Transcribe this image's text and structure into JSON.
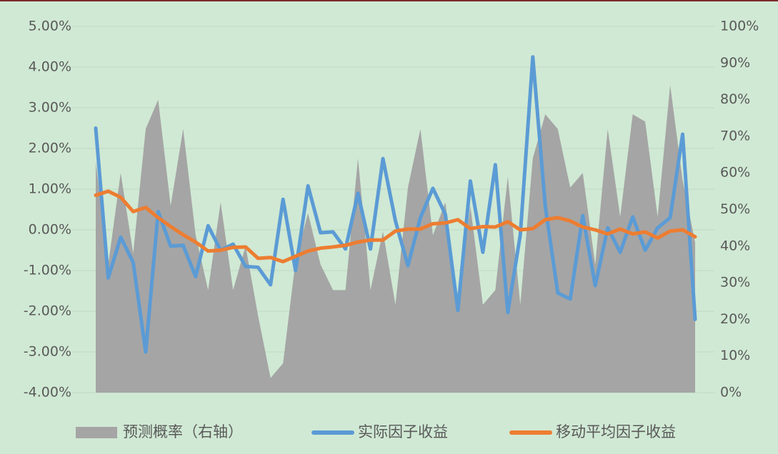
{
  "chart_data": {
    "type": "combo",
    "categories": [
      null,
      null,
      null,
      null,
      null,
      null,
      null,
      null,
      null,
      null,
      null,
      null,
      null,
      null,
      null,
      null,
      null,
      null,
      null,
      null,
      null,
      null,
      null,
      null,
      null,
      null,
      null,
      null,
      null,
      null,
      null,
      null,
      null,
      null,
      null,
      null,
      null,
      null,
      null,
      null,
      null,
      null,
      null,
      null,
      null,
      null,
      null,
      null,
      null
    ],
    "series": [
      {
        "name": "预测概率（右轴）",
        "type": "area",
        "axis": "y2",
        "color": "#a5a5a5",
        "values": [
          63,
          35,
          60,
          38,
          72,
          80,
          51,
          72,
          43,
          28,
          52,
          28,
          40,
          21,
          4,
          8,
          36,
          49,
          35,
          28,
          28,
          64,
          28,
          44,
          24,
          56,
          72,
          43,
          52,
          23,
          51,
          24,
          28,
          59,
          24,
          64,
          76,
          72,
          56,
          60,
          35,
          72,
          48,
          76,
          74,
          48,
          84,
          58,
          41
        ]
      },
      {
        "name": "实际因子收益",
        "type": "line",
        "color": "#5b9bd5",
        "values": [
          2.5,
          -1.18,
          -0.18,
          -0.8,
          -3.0,
          0.45,
          -0.4,
          -0.38,
          -1.15,
          0.1,
          -0.5,
          -0.35,
          -0.9,
          -0.92,
          -1.35,
          0.75,
          -1.0,
          1.08,
          -0.07,
          -0.05,
          -0.47,
          0.9,
          -0.47,
          1.75,
          0.22,
          -0.88,
          0.3,
          1.02,
          0.38,
          -1.98,
          1.2,
          -0.55,
          1.6,
          -2.03,
          -0.12,
          4.25,
          0.58,
          -1.55,
          -1.7,
          0.35,
          -1.37,
          0.05,
          -0.55,
          0.32,
          -0.5,
          0.05,
          0.3,
          2.35,
          -2.2
        ]
      },
      {
        "name": "移动平均因子收益",
        "type": "line",
        "color": "#ed7d31",
        "values": [
          0.85,
          0.95,
          0.8,
          0.45,
          0.55,
          0.3,
          0.08,
          -0.12,
          -0.3,
          -0.52,
          -0.5,
          -0.43,
          -0.42,
          -0.7,
          -0.68,
          -0.78,
          -0.65,
          -0.52,
          -0.45,
          -0.42,
          -0.38,
          -0.3,
          -0.25,
          -0.25,
          -0.03,
          0.02,
          0.02,
          0.15,
          0.17,
          0.25,
          0.03,
          0.08,
          0.07,
          0.2,
          0.0,
          0.03,
          0.25,
          0.3,
          0.22,
          0.07,
          0.0,
          -0.1,
          0.02,
          -0.1,
          -0.05,
          -0.2,
          -0.03,
          0.0,
          -0.17
        ]
      }
    ],
    "ylim": [
      -4,
      5
    ],
    "yticks": [
      {
        "value": -4,
        "label": "-4.00%"
      },
      {
        "value": -3,
        "label": "-3.00%"
      },
      {
        "value": -2,
        "label": "-2.00%"
      },
      {
        "value": -1,
        "label": "-1.00%"
      },
      {
        "value": 0,
        "label": "0.00%"
      },
      {
        "value": 1,
        "label": "1.00%"
      },
      {
        "value": 2,
        "label": "2.00%"
      },
      {
        "value": 3,
        "label": "3.00%"
      },
      {
        "value": 4,
        "label": "4.00%"
      },
      {
        "value": 5,
        "label": "5.00%"
      }
    ],
    "y2lim": [
      0,
      100
    ],
    "y2ticks": [
      {
        "value": 0,
        "label": "0%"
      },
      {
        "value": 10,
        "label": "10%"
      },
      {
        "value": 20,
        "label": "20%"
      },
      {
        "value": 30,
        "label": "30%"
      },
      {
        "value": 40,
        "label": "40%"
      },
      {
        "value": 50,
        "label": "50%"
      },
      {
        "value": 60,
        "label": "60%"
      },
      {
        "value": 70,
        "label": "70%"
      },
      {
        "value": 80,
        "label": "80%"
      },
      {
        "value": 90,
        "label": "90%"
      },
      {
        "value": 100,
        "label": "100%"
      }
    ],
    "grid": true,
    "legend": "bottom",
    "background": "#d0e9d4"
  }
}
